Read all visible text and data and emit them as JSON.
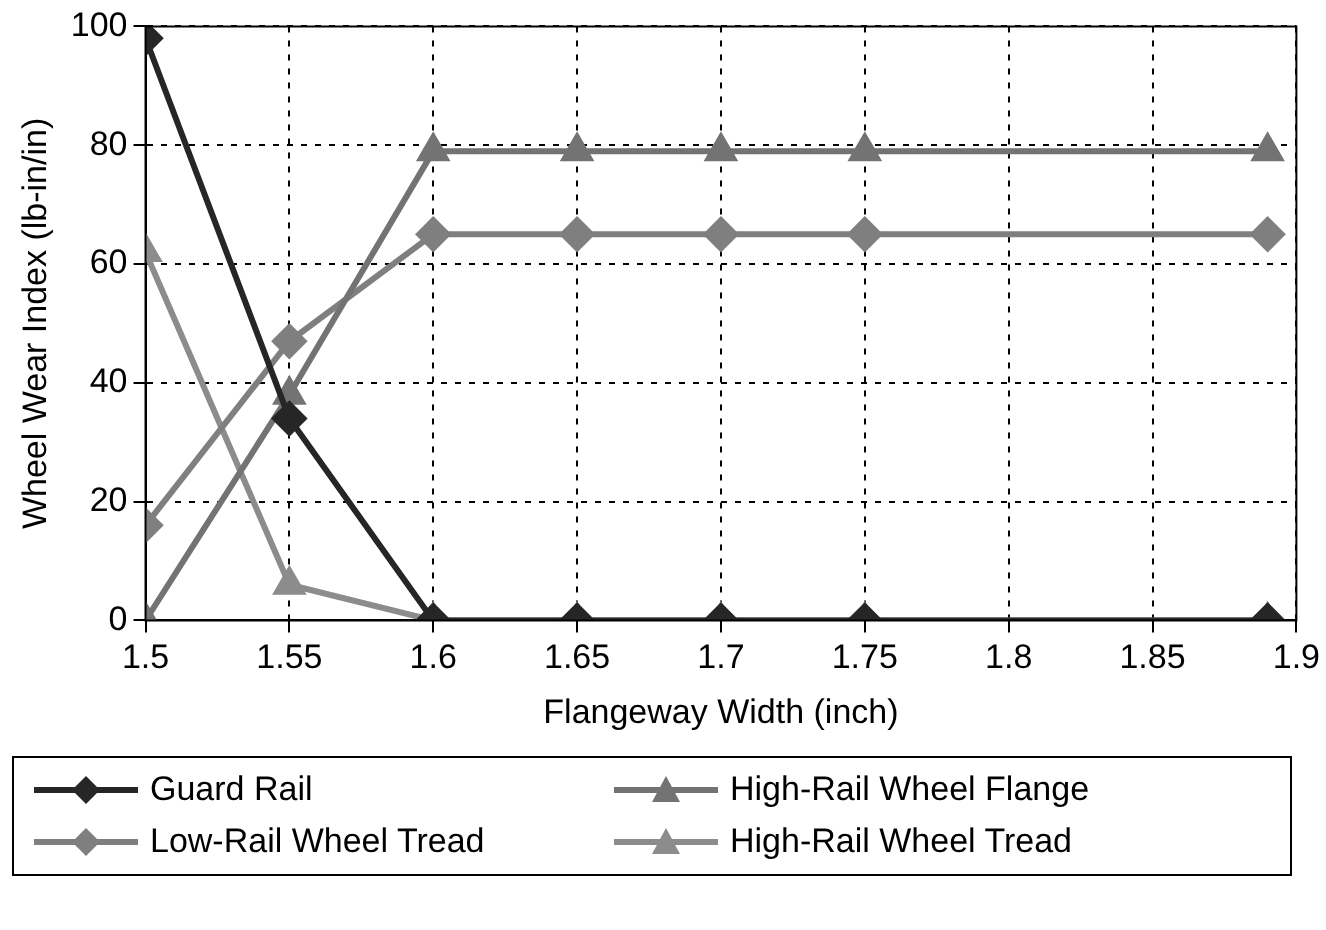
{
  "chart_data": {
    "type": "line",
    "xlabel": "Flangeway Width (inch)",
    "ylabel": "Wheel Wear Index (lb-in/in)",
    "x": [
      1.5,
      1.55,
      1.6,
      1.65,
      1.7,
      1.75,
      1.89
    ],
    "xlim": [
      1.5,
      1.9
    ],
    "xticks": [
      1.5,
      1.55,
      1.6,
      1.65,
      1.7,
      1.75,
      1.8,
      1.85,
      1.9
    ],
    "ylim": [
      0,
      100
    ],
    "yticks": [
      0,
      20,
      40,
      60,
      80,
      100
    ],
    "grid": true,
    "legend": "bottom",
    "line_style": "solid",
    "series": [
      {
        "name": "Guard Rail",
        "color": "#262626",
        "marker": "diamond",
        "values": [
          98,
          34,
          0,
          0,
          0,
          0,
          0
        ]
      },
      {
        "name": "High-Rail Wheel Flange",
        "color": "#737373",
        "marker": "triangle",
        "values": [
          0,
          38,
          79,
          79,
          79,
          79,
          79
        ]
      },
      {
        "name": "Low-Rail Wheel Tread",
        "color": "#7f7f7f",
        "marker": "diamond",
        "values": [
          16,
          47,
          65,
          65,
          65,
          65,
          65
        ]
      },
      {
        "name": "High-Rail Wheel Tread",
        "color": "#8c8c8c",
        "marker": "triangle",
        "values": [
          62,
          6,
          0,
          0,
          0,
          0,
          0
        ]
      }
    ]
  }
}
